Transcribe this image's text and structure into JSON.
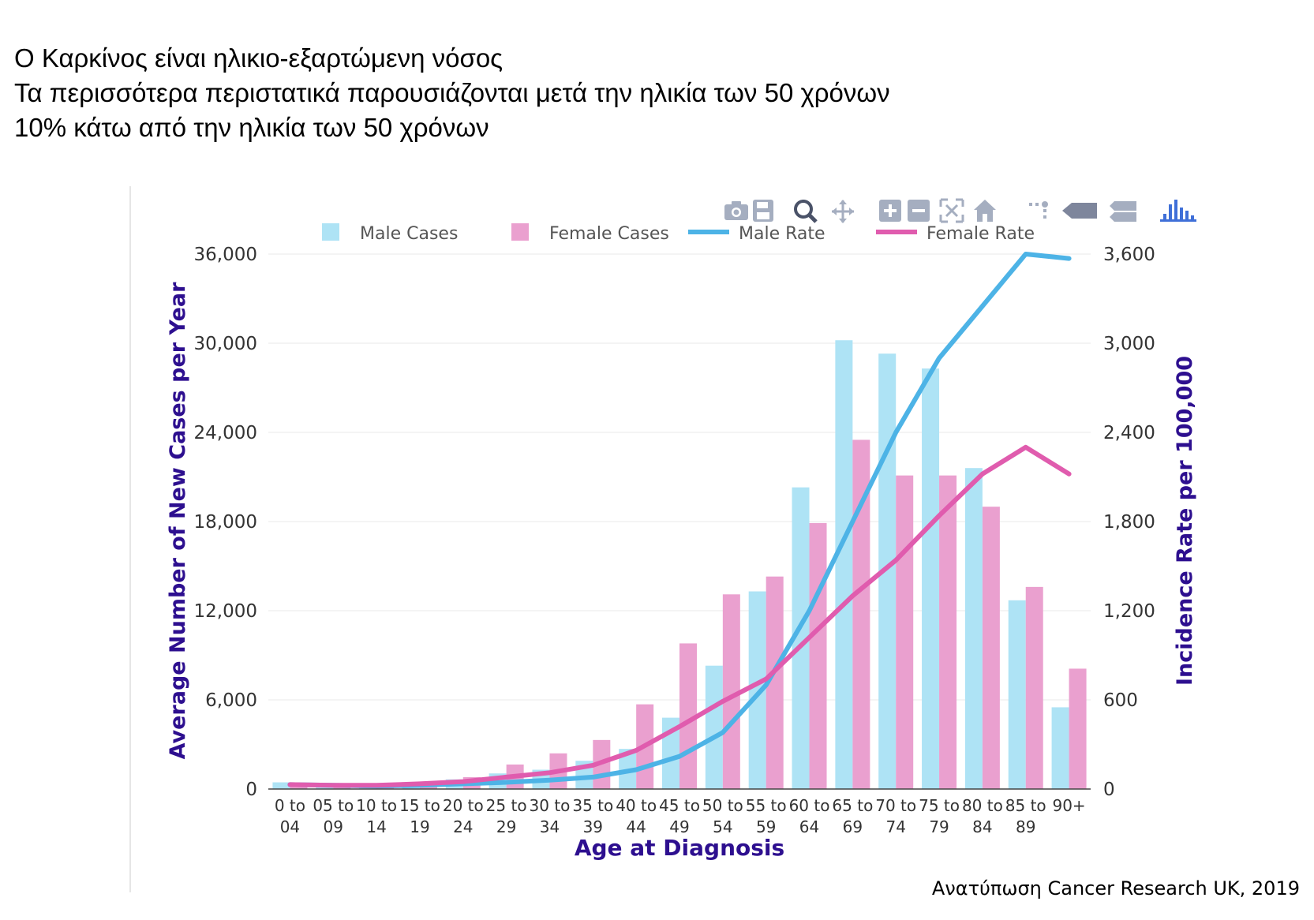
{
  "header": {
    "lines": [
      "Ο Καρκίνος είναι ηλικιο-εξαρτώμενη νόσος",
      "Τα περισσότερα περιστατικά παρουσιάζονται μετά την ηλικία των 50 χρόνων",
      "10% κάτω από την ηλικία των 50 χρόνων"
    ]
  },
  "credit": "Ανατύπωση Cancer Research UK, 2019",
  "toolbar": {
    "icons": [
      "camera-icon",
      "save-icon",
      "zoom-icon",
      "pan-icon",
      "zoom-in-icon",
      "zoom-out-icon",
      "autoscale-icon",
      "home-icon",
      "spike-lines-icon",
      "hover-closest-icon",
      "hover-compare-icon",
      "plotly-logo-icon"
    ]
  },
  "chart_data": {
    "type": "bar",
    "xlabel": "Age at Diagnosis",
    "ylabel": "Average Number of New Cases per Year",
    "y2label": "Incidence Rate per 100,000",
    "ylim": [
      0,
      36000
    ],
    "y2lim": [
      0,
      3600
    ],
    "yticks": [
      "0",
      "6,000",
      "12,000",
      "18,000",
      "24,000",
      "30,000",
      "36,000"
    ],
    "y2ticks": [
      "0",
      "600",
      "1,200",
      "1,800",
      "2,400",
      "3,000",
      "3,600"
    ],
    "grid": true,
    "legend_position": "top",
    "categories": [
      [
        "0 to",
        "04"
      ],
      [
        "05 to",
        "09"
      ],
      [
        "10 to",
        "14"
      ],
      [
        "15 to",
        "19"
      ],
      [
        "20 to",
        "24"
      ],
      [
        "25 to",
        "29"
      ],
      [
        "30 to",
        "34"
      ],
      [
        "35 to",
        "39"
      ],
      [
        "40 to",
        "44"
      ],
      [
        "45 to",
        "49"
      ],
      [
        "50 to",
        "54"
      ],
      [
        "55 to",
        "59"
      ],
      [
        "60 to",
        "64"
      ],
      [
        "65 to",
        "69"
      ],
      [
        "70 to",
        "74"
      ],
      [
        "75 to",
        "79"
      ],
      [
        "80 to",
        "84"
      ],
      [
        "85 to",
        "89"
      ],
      [
        "90+",
        ""
      ]
    ],
    "bar_series": [
      {
        "name": "Male Cases",
        "color": "#aee3f5",
        "values": [
          450,
          200,
          250,
          400,
          650,
          1050,
          1300,
          1900,
          2700,
          4800,
          8300,
          13300,
          20300,
          30200,
          29300,
          28300,
          21600,
          12700,
          5500
        ]
      },
      {
        "name": "Female Cases",
        "color": "#eaa0cf",
        "values": [
          350,
          250,
          300,
          500,
          800,
          1650,
          2400,
          3300,
          5700,
          9800,
          13100,
          14300,
          17900,
          23500,
          21100,
          21100,
          19000,
          13600,
          8100
        ]
      }
    ],
    "line_series": [
      {
        "name": "Male Rate",
        "color": "#4db3e6",
        "values": [
          30,
          25,
          20,
          25,
          35,
          45,
          60,
          80,
          130,
          220,
          380,
          700,
          1200,
          1800,
          2400,
          2900,
          3250,
          3600,
          3570
        ]
      },
      {
        "name": "Female Rate",
        "color": "#e05cae",
        "values": [
          30,
          25,
          25,
          35,
          50,
          80,
          110,
          160,
          260,
          420,
          590,
          740,
          1020,
          1300,
          1540,
          1840,
          2120,
          2300,
          2120
        ]
      }
    ],
    "axis_color": "#2d0f8f"
  }
}
